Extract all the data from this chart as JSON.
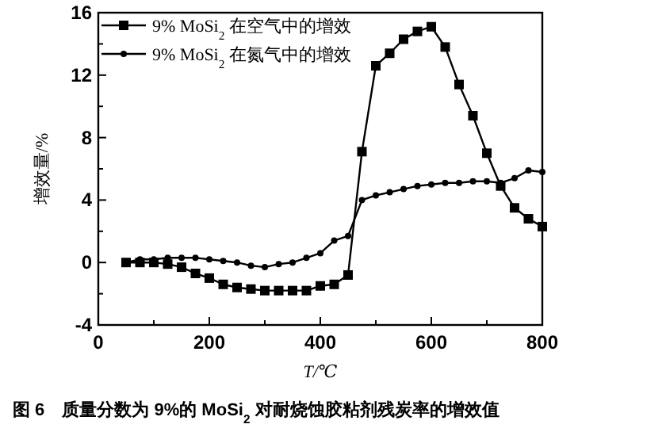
{
  "chart_data": {
    "type": "line",
    "title": "图 6　质量分数为 9%的 MoSi$_{2}$ 对耐烧蚀胶粘剂残炭率的增效值",
    "xlabel": "T/℃",
    "ylabel": "增效量/%",
    "x": [
      50,
      75,
      100,
      125,
      150,
      175,
      200,
      225,
      250,
      275,
      300,
      325,
      350,
      375,
      400,
      425,
      450,
      475,
      500,
      525,
      550,
      575,
      600,
      625,
      650,
      675,
      700,
      725,
      750,
      775,
      800
    ],
    "series": [
      {
        "name": "9% MoSi$_{2}$ 在空气中的增效",
        "color": "#000000",
        "marker": "square",
        "values": [
          0,
          0,
          0,
          -0.1,
          -0.3,
          -0.7,
          -1.0,
          -1.4,
          -1.6,
          -1.7,
          -1.8,
          -1.8,
          -1.8,
          -1.8,
          -1.5,
          -1.4,
          -0.8,
          7.1,
          12.6,
          13.4,
          14.3,
          14.8,
          15.1,
          13.8,
          11.4,
          9.4,
          7.0,
          4.9,
          3.5,
          2.8,
          2.3
        ]
      },
      {
        "name": "9% MoSi$_{2}$ 在氮气中的增效",
        "color": "#000000",
        "marker": "circle",
        "values": [
          0,
          0.2,
          0.2,
          0.3,
          0.3,
          0.3,
          0.2,
          0.1,
          0,
          -0.2,
          -0.3,
          -0.1,
          0,
          0.3,
          0.6,
          1.4,
          1.7,
          4.0,
          4.3,
          4.5,
          4.7,
          4.9,
          5.0,
          5.1,
          5.1,
          5.2,
          5.2,
          5.1,
          5.4,
          5.9,
          5.8
        ]
      }
    ],
    "xlim": [
      0,
      800
    ],
    "xticks": [
      0,
      {
        "value": 100,
        "label": null
      },
      200,
      {
        "value": 300,
        "label": null
      },
      400,
      {
        "value": 500,
        "label": null
      },
      600,
      {
        "value": 700,
        "label": null
      },
      800
    ],
    "ylim": [
      -4,
      16
    ],
    "yticks": [
      -4,
      {
        "value": -2,
        "label": null
      },
      0,
      {
        "value": 2,
        "label": null
      },
      4,
      {
        "value": 6,
        "label": null
      },
      8,
      {
        "value": 10,
        "label": null
      },
      12,
      {
        "value": 14,
        "label": null
      },
      16
    ],
    "legend": "top left",
    "grid": false,
    "line_style": "solid"
  }
}
